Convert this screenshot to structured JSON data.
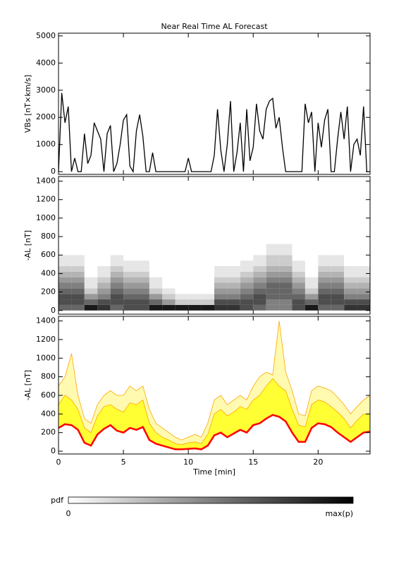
{
  "chart_data": [
    {
      "type": "line",
      "title": "Near Real Time AL Forecast",
      "ylabel": "VBs [nT×km/s]",
      "color": "#000000",
      "xlim": [
        0,
        24
      ],
      "xticks": [
        0,
        5,
        10,
        15,
        20
      ],
      "ylim": [
        -100,
        5100
      ],
      "yticks": [
        0,
        1000,
        2000,
        3000,
        4000,
        5000
      ],
      "x": [
        0,
        0.25,
        0.5,
        0.75,
        1,
        1.25,
        1.5,
        1.75,
        2,
        2.25,
        2.5,
        2.75,
        3,
        3.25,
        3.5,
        3.75,
        4,
        4.25,
        4.5,
        4.75,
        5,
        5.25,
        5.5,
        5.75,
        6,
        6.25,
        6.5,
        6.75,
        7,
        7.25,
        7.5,
        7.75,
        8,
        8.25,
        8.5,
        8.75,
        9,
        9.25,
        9.5,
        9.75,
        10,
        10.25,
        10.5,
        10.75,
        11,
        11.25,
        11.5,
        11.75,
        12,
        12.25,
        12.5,
        12.75,
        13,
        13.25,
        13.5,
        13.75,
        14,
        14.25,
        14.5,
        14.75,
        15,
        15.25,
        15.5,
        15.75,
        16,
        16.25,
        16.5,
        16.75,
        17,
        17.25,
        17.5,
        17.75,
        18,
        18.25,
        18.5,
        18.75,
        19,
        19.25,
        19.5,
        19.75,
        20,
        20.25,
        20.5,
        20.75,
        21,
        21.25,
        21.5,
        21.75,
        22,
        22.25,
        22.5,
        22.75,
        23,
        23.25,
        23.5,
        23.75,
        24
      ],
      "values": [
        0,
        2900,
        1800,
        2400,
        0,
        500,
        0,
        0,
        1400,
        300,
        600,
        1800,
        1500,
        1200,
        0,
        1400,
        1700,
        0,
        300,
        1000,
        1900,
        2100,
        200,
        0,
        1500,
        2100,
        1300,
        0,
        0,
        700,
        0,
        0,
        0,
        0,
        0,
        0,
        0,
        0,
        0,
        0,
        500,
        0,
        0,
        0,
        0,
        0,
        0,
        0,
        600,
        2300,
        800,
        0,
        1000,
        2600,
        0,
        700,
        1800,
        0,
        2300,
        400,
        900,
        2500,
        1500,
        1200,
        2300,
        2600,
        2700,
        1600,
        2000,
        900,
        0,
        0,
        0,
        0,
        0,
        0,
        2500,
        1800,
        2200,
        0,
        1800,
        900,
        1900,
        2300,
        0,
        0,
        1200,
        2200,
        1200,
        2400,
        0,
        1000,
        1200,
        600,
        2400,
        0,
        0
      ]
    },
    {
      "type": "heatmap",
      "ylabel": "-AL [nT]",
      "xlim": [
        0,
        24
      ],
      "xticks": [
        0,
        5,
        10,
        15,
        20
      ],
      "ylim": [
        -40,
        1450
      ],
      "yticks": [
        0,
        200,
        400,
        600,
        800,
        1000,
        1200,
        1400
      ],
      "x_bins": [
        0,
        1,
        2,
        3,
        4,
        5,
        6,
        7,
        8,
        9,
        10,
        11,
        12,
        13,
        14,
        15,
        16,
        17,
        18,
        19,
        20,
        21,
        22,
        23,
        24
      ],
      "y_bins": [
        0,
        60,
        120,
        180,
        240,
        300,
        360,
        420,
        480,
        540,
        600,
        660,
        720
      ],
      "z": [
        [
          0.6,
          0.7,
          0.7,
          0.6,
          0.5,
          0.4,
          0.3,
          0.2,
          0.1,
          0.1,
          0,
          0
        ],
        [
          0.6,
          0.7,
          0.7,
          0.6,
          0.5,
          0.4,
          0.3,
          0.2,
          0.1,
          0.1,
          0,
          0
        ],
        [
          0.9,
          0.6,
          0.4,
          0.2,
          0.1,
          0.1,
          0,
          0,
          0,
          0,
          0,
          0
        ],
        [
          0.8,
          0.7,
          0.5,
          0.4,
          0.3,
          0.2,
          0.1,
          0.1,
          0,
          0,
          0,
          0
        ],
        [
          0.6,
          0.7,
          0.7,
          0.6,
          0.5,
          0.4,
          0.3,
          0.2,
          0.1,
          0.1,
          0,
          0
        ],
        [
          0.7,
          0.7,
          0.6,
          0.5,
          0.4,
          0.3,
          0.2,
          0.1,
          0.1,
          0,
          0,
          0
        ],
        [
          0.7,
          0.7,
          0.6,
          0.5,
          0.4,
          0.3,
          0.2,
          0.1,
          0.1,
          0,
          0,
          0
        ],
        [
          0.9,
          0.6,
          0.4,
          0.2,
          0.1,
          0.1,
          0,
          0,
          0,
          0,
          0,
          0
        ],
        [
          0.9,
          0.4,
          0.2,
          0.1,
          0,
          0,
          0,
          0,
          0,
          0,
          0,
          0
        ],
        [
          0.9,
          0.2,
          0.1,
          0,
          0,
          0,
          0,
          0,
          0,
          0,
          0,
          0
        ],
        [
          0.9,
          0.2,
          0.1,
          0,
          0,
          0,
          0,
          0,
          0,
          0,
          0,
          0
        ],
        [
          0.9,
          0.2,
          0.1,
          0,
          0,
          0,
          0,
          0,
          0,
          0,
          0,
          0
        ],
        [
          0.8,
          0.7,
          0.5,
          0.4,
          0.3,
          0.2,
          0.1,
          0.1,
          0,
          0,
          0,
          0
        ],
        [
          0.8,
          0.7,
          0.5,
          0.4,
          0.3,
          0.2,
          0.1,
          0.1,
          0,
          0,
          0,
          0
        ],
        [
          0.7,
          0.7,
          0.6,
          0.5,
          0.4,
          0.3,
          0.2,
          0.1,
          0.1,
          0,
          0,
          0
        ],
        [
          0.6,
          0.7,
          0.7,
          0.6,
          0.5,
          0.4,
          0.3,
          0.2,
          0.1,
          0.1,
          0,
          0
        ],
        [
          0.5,
          0.5,
          0.6,
          0.6,
          0.6,
          0.5,
          0.4,
          0.3,
          0.2,
          0.2,
          0.1,
          0.1
        ],
        [
          0.5,
          0.5,
          0.6,
          0.6,
          0.6,
          0.5,
          0.4,
          0.3,
          0.2,
          0.2,
          0.1,
          0.1
        ],
        [
          0.7,
          0.7,
          0.6,
          0.5,
          0.4,
          0.3,
          0.2,
          0.1,
          0.1,
          0,
          0,
          0
        ],
        [
          0.9,
          0.6,
          0.4,
          0.2,
          0.1,
          0.1,
          0,
          0,
          0,
          0,
          0,
          0
        ],
        [
          0.6,
          0.7,
          0.7,
          0.6,
          0.5,
          0.4,
          0.3,
          0.2,
          0.1,
          0.1,
          0,
          0
        ],
        [
          0.6,
          0.7,
          0.7,
          0.6,
          0.5,
          0.4,
          0.3,
          0.2,
          0.1,
          0.1,
          0,
          0
        ],
        [
          0.8,
          0.7,
          0.5,
          0.4,
          0.3,
          0.2,
          0.1,
          0.1,
          0,
          0,
          0,
          0
        ],
        [
          0.8,
          0.7,
          0.5,
          0.4,
          0.3,
          0.2,
          0.1,
          0.1,
          0,
          0,
          0,
          0
        ]
      ]
    },
    {
      "type": "band",
      "ylabel": "-AL [nT]",
      "xlabel": "Time [min]",
      "xlim": [
        0,
        24
      ],
      "xticks": [
        0,
        5,
        10,
        15,
        20
      ],
      "ylim": [
        -30,
        1450
      ],
      "yticks": [
        0,
        200,
        400,
        600,
        800,
        1000,
        1200,
        1400
      ],
      "x": [
        0,
        0.5,
        1,
        1.5,
        2,
        2.5,
        3,
        3.5,
        4,
        4.5,
        5,
        5.5,
        6,
        6.5,
        7,
        7.5,
        8,
        8.5,
        9,
        9.5,
        10,
        10.5,
        11,
        11.5,
        12,
        12.5,
        13,
        13.5,
        14,
        14.5,
        15,
        15.5,
        16,
        16.5,
        17,
        17.5,
        18,
        18.5,
        19,
        19.5,
        20,
        20.5,
        21,
        21.5,
        22,
        22.5,
        23,
        23.5,
        24
      ],
      "series": [
        {
          "color": "#fffab0",
          "line_color": "#ffa500",
          "values": [
            700,
            800,
            1050,
            600,
            350,
            300,
            500,
            600,
            650,
            600,
            600,
            700,
            650,
            700,
            450,
            300,
            250,
            200,
            150,
            120,
            150,
            180,
            150,
            300,
            550,
            600,
            500,
            550,
            600,
            550,
            700,
            800,
            850,
            820,
            1400,
            850,
            650,
            400,
            380,
            650,
            700,
            680,
            650,
            580,
            500,
            400,
            480,
            550,
            600
          ]
        },
        {
          "color": "#ffff33",
          "line_color": "#ffa500",
          "values": [
            500,
            600,
            550,
            450,
            250,
            200,
            380,
            480,
            500,
            450,
            420,
            520,
            500,
            550,
            300,
            200,
            150,
            120,
            80,
            70,
            90,
            100,
            80,
            180,
            400,
            450,
            380,
            420,
            480,
            450,
            550,
            600,
            700,
            780,
            700,
            650,
            450,
            280,
            260,
            500,
            550,
            530,
            480,
            420,
            350,
            250,
            330,
            400,
            400
          ]
        },
        {
          "color": "#ff0000",
          "values": [
            250,
            290,
            280,
            230,
            90,
            60,
            180,
            240,
            280,
            220,
            200,
            250,
            230,
            260,
            120,
            80,
            60,
            40,
            20,
            20,
            25,
            30,
            20,
            60,
            170,
            200,
            150,
            190,
            230,
            200,
            280,
            300,
            350,
            390,
            370,
            320,
            200,
            100,
            100,
            250,
            300,
            290,
            260,
            200,
            150,
            100,
            150,
            200,
            210
          ]
        }
      ]
    }
  ],
  "colorbar": {
    "label": "pdf",
    "min_label": "0",
    "max_label": "max(p)"
  }
}
